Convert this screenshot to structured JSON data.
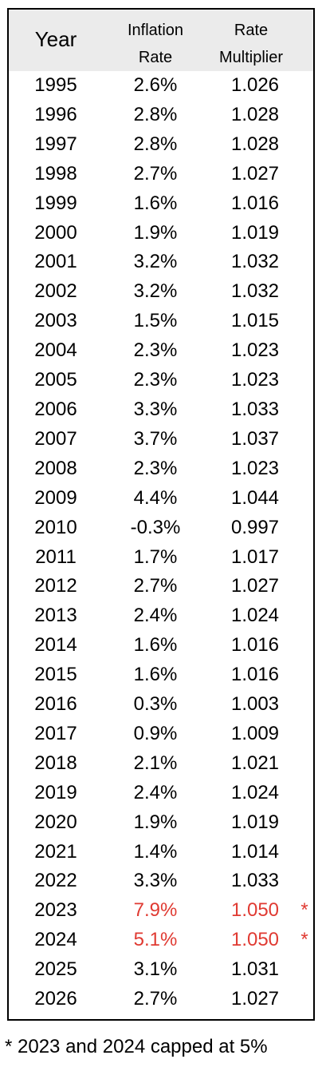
{
  "header": {
    "year": "Year",
    "inflation_line1": "Inflation",
    "inflation_line2": "Rate",
    "multiplier_line1": "Rate",
    "multiplier_line2": "Multiplier"
  },
  "rows": [
    {
      "year": "1995",
      "inflation": "2.6%",
      "multiplier": "1.026",
      "capped": false,
      "mark": ""
    },
    {
      "year": "1996",
      "inflation": "2.8%",
      "multiplier": "1.028",
      "capped": false,
      "mark": ""
    },
    {
      "year": "1997",
      "inflation": "2.8%",
      "multiplier": "1.028",
      "capped": false,
      "mark": ""
    },
    {
      "year": "1998",
      "inflation": "2.7%",
      "multiplier": "1.027",
      "capped": false,
      "mark": ""
    },
    {
      "year": "1999",
      "inflation": "1.6%",
      "multiplier": "1.016",
      "capped": false,
      "mark": ""
    },
    {
      "year": "2000",
      "inflation": "1.9%",
      "multiplier": "1.019",
      "capped": false,
      "mark": ""
    },
    {
      "year": "2001",
      "inflation": "3.2%",
      "multiplier": "1.032",
      "capped": false,
      "mark": ""
    },
    {
      "year": "2002",
      "inflation": "3.2%",
      "multiplier": "1.032",
      "capped": false,
      "mark": ""
    },
    {
      "year": "2003",
      "inflation": "1.5%",
      "multiplier": "1.015",
      "capped": false,
      "mark": ""
    },
    {
      "year": "2004",
      "inflation": "2.3%",
      "multiplier": "1.023",
      "capped": false,
      "mark": ""
    },
    {
      "year": "2005",
      "inflation": "2.3%",
      "multiplier": "1.023",
      "capped": false,
      "mark": ""
    },
    {
      "year": "2006",
      "inflation": "3.3%",
      "multiplier": "1.033",
      "capped": false,
      "mark": ""
    },
    {
      "year": "2007",
      "inflation": "3.7%",
      "multiplier": "1.037",
      "capped": false,
      "mark": ""
    },
    {
      "year": "2008",
      "inflation": "2.3%",
      "multiplier": "1.023",
      "capped": false,
      "mark": ""
    },
    {
      "year": "2009",
      "inflation": "4.4%",
      "multiplier": "1.044",
      "capped": false,
      "mark": ""
    },
    {
      "year": "2010",
      "inflation": "-0.3%",
      "multiplier": "0.997",
      "capped": false,
      "mark": ""
    },
    {
      "year": "2011",
      "inflation": "1.7%",
      "multiplier": "1.017",
      "capped": false,
      "mark": ""
    },
    {
      "year": "2012",
      "inflation": "2.7%",
      "multiplier": "1.027",
      "capped": false,
      "mark": ""
    },
    {
      "year": "2013",
      "inflation": "2.4%",
      "multiplier": "1.024",
      "capped": false,
      "mark": ""
    },
    {
      "year": "2014",
      "inflation": "1.6%",
      "multiplier": "1.016",
      "capped": false,
      "mark": ""
    },
    {
      "year": "2015",
      "inflation": "1.6%",
      "multiplier": "1.016",
      "capped": false,
      "mark": ""
    },
    {
      "year": "2016",
      "inflation": "0.3%",
      "multiplier": "1.003",
      "capped": false,
      "mark": ""
    },
    {
      "year": "2017",
      "inflation": "0.9%",
      "multiplier": "1.009",
      "capped": false,
      "mark": ""
    },
    {
      "year": "2018",
      "inflation": "2.1%",
      "multiplier": "1.021",
      "capped": false,
      "mark": ""
    },
    {
      "year": "2019",
      "inflation": "2.4%",
      "multiplier": "1.024",
      "capped": false,
      "mark": ""
    },
    {
      "year": "2020",
      "inflation": "1.9%",
      "multiplier": "1.019",
      "capped": false,
      "mark": ""
    },
    {
      "year": "2021",
      "inflation": "1.4%",
      "multiplier": "1.014",
      "capped": false,
      "mark": ""
    },
    {
      "year": "2022",
      "inflation": "3.3%",
      "multiplier": "1.033",
      "capped": false,
      "mark": ""
    },
    {
      "year": "2023",
      "inflation": "7.9%",
      "multiplier": "1.050",
      "capped": true,
      "mark": "*"
    },
    {
      "year": "2024",
      "inflation": "5.1%",
      "multiplier": "1.050",
      "capped": true,
      "mark": "*"
    },
    {
      "year": "2025",
      "inflation": "3.1%",
      "multiplier": "1.031",
      "capped": false,
      "mark": ""
    },
    {
      "year": "2026",
      "inflation": "2.7%",
      "multiplier": "1.027",
      "capped": false,
      "mark": ""
    }
  ],
  "footnote": "* 2023 and 2024 capped at 5%",
  "colors": {
    "header_background": "#ebebeb",
    "capped_highlight": "#e03a32",
    "border": "#000000"
  }
}
